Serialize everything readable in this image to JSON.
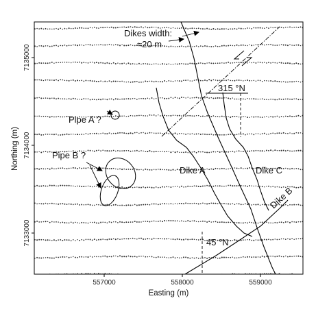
{
  "x_axis": {
    "label": "Easting (m)",
    "ticks": [
      "557000",
      "558000",
      "559000"
    ]
  },
  "y_axis": {
    "label": "Northing (m)",
    "ticks": [
      "7135000",
      "7134000",
      "7133000"
    ]
  },
  "annotations": {
    "dikes_width_line1": "Dikes width:",
    "dikes_width_line2": "≈20 m",
    "pipe_a": "Pipe A ?",
    "pipe_b": "Pipe B ?",
    "dike_a": "Dike A",
    "dike_b": "Dike B",
    "dike_c": "Dike C",
    "strike_315": "315 °N",
    "strike_45": "45 °N"
  }
}
